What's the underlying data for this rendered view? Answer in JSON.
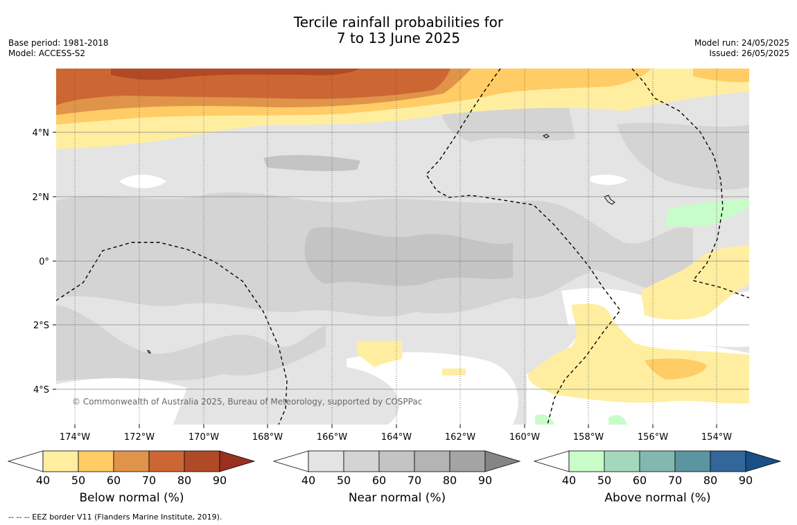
{
  "title": {
    "line1": "Tercile rainfall probabilities for",
    "line2": "7 to 13 June 2025"
  },
  "meta": {
    "base_period": "Base period: 1981-2018",
    "model": "Model: ACCESS-S2",
    "model_run": "Model run: 24/05/2025",
    "issued": "Issued: 26/05/2025"
  },
  "map": {
    "copyright": "© Commonwealth of Australia 2025, Bureau of Meteorology, supported by COSPPac",
    "lon_ticks": [
      "174°W",
      "172°W",
      "170°W",
      "168°W",
      "166°W",
      "164°W",
      "162°W",
      "160°W",
      "158°W",
      "156°W",
      "154°W"
    ],
    "lat_ticks": [
      "4°N",
      "2°N",
      "0°",
      "2°S",
      "4°S"
    ]
  },
  "colorbars": [
    {
      "label": "Below normal (%)",
      "ticks": [
        "40",
        "50",
        "60",
        "70",
        "80",
        "90"
      ],
      "colors": [
        "#ffeea0",
        "#ffcc66",
        "#e0944a",
        "#cc6633",
        "#b04a26",
        "#9a3020"
      ]
    },
    {
      "label": "Near normal (%)",
      "ticks": [
        "40",
        "50",
        "60",
        "70",
        "80",
        "90"
      ],
      "colors": [
        "#e4e4e4",
        "#d4d4d4",
        "#c4c4c4",
        "#b4b4b4",
        "#a4a4a4",
        "#858585"
      ]
    },
    {
      "label": "Above normal (%)",
      "ticks": [
        "40",
        "50",
        "60",
        "70",
        "80",
        "90"
      ],
      "colors": [
        "#c8fcc8",
        "#a4d8bc",
        "#82b8b0",
        "#5c94a0",
        "#336699",
        "#1a4f86"
      ]
    }
  ],
  "footnote": "--  --  -- EEZ border V11 (Flanders Marine Institute, 2019).",
  "colors": {
    "no_signal": "#ffffff",
    "grid": "#888888",
    "eez_line": "#000000"
  }
}
